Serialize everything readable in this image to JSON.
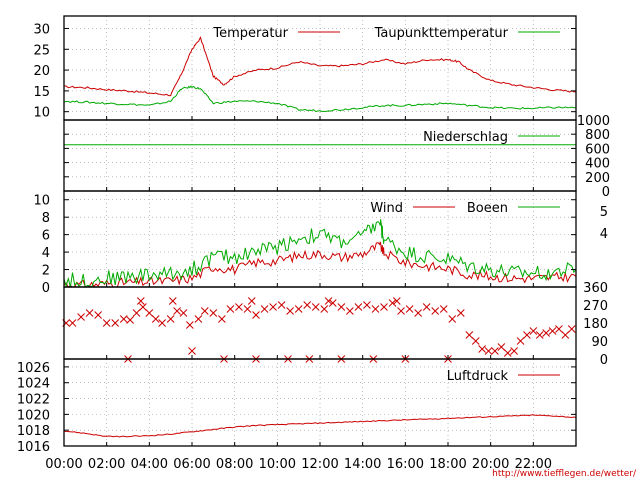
{
  "chart_data": [
    {
      "type": "line",
      "panel": "temperature",
      "ylim": [
        8,
        33
      ],
      "yticks": [
        "10",
        "15",
        "20",
        "25",
        "30"
      ],
      "legend_position": "top-right",
      "grid": true,
      "series": [
        {
          "name": "Temperatur",
          "color": "#cc0000",
          "x": [
            0,
            1,
            2,
            3,
            4,
            5,
            5.5,
            6,
            6.4,
            7,
            7.5,
            8,
            9,
            10,
            11,
            12,
            13,
            14,
            15,
            16,
            17,
            18,
            18.5,
            19,
            20,
            21,
            22,
            23,
            24
          ],
          "y": [
            16,
            15.8,
            15.3,
            15,
            14.5,
            14,
            19,
            25,
            27.7,
            18.5,
            16.5,
            18.5,
            20,
            20.5,
            22,
            21,
            21,
            21.5,
            22.5,
            21.5,
            22.5,
            22.5,
            22,
            20,
            17.5,
            16.5,
            15.8,
            15.2,
            14.8
          ]
        },
        {
          "name": "Taupunkttemperatur",
          "color": "#00aa00",
          "x": [
            0,
            1,
            2,
            3,
            4,
            5,
            5.5,
            6,
            6.4,
            7,
            8,
            9,
            10,
            11,
            12,
            13,
            14,
            15,
            16,
            17,
            18,
            19,
            20,
            21,
            22,
            23,
            24
          ],
          "y": [
            12.5,
            12.3,
            12,
            11.8,
            11.5,
            12.5,
            15.5,
            16,
            15.5,
            12,
            12.5,
            12.5,
            12,
            10.5,
            10.2,
            10.5,
            11,
            11.5,
            11.5,
            11.8,
            12,
            11.5,
            11,
            10.8,
            10.8,
            11,
            11
          ]
        }
      ]
    },
    {
      "type": "line",
      "panel": "precipitation",
      "ylim": [
        0,
        1000
      ],
      "yticks": [
        "0",
        "200",
        "400",
        "600",
        "800",
        "1000"
      ],
      "legend_position": "top-right",
      "grid": true,
      "series": [
        {
          "name": "Niederschlag",
          "color": "#00aa00",
          "x": [
            0,
            24
          ],
          "y": [
            650,
            650
          ]
        }
      ]
    },
    {
      "type": "line",
      "panel": "wind",
      "ylim": [
        0,
        11
      ],
      "yticks": [
        "0",
        "2",
        "4",
        "6",
        "8",
        "10"
      ],
      "right_ticks": [
        "4",
        "5"
      ],
      "legend_position": "top-right",
      "grid": true,
      "series": [
        {
          "name": "Wind",
          "color": "#cc0000",
          "x": [
            0,
            1,
            2,
            3,
            4,
            5,
            6,
            7,
            8,
            9,
            10,
            11,
            12,
            13,
            14,
            14.8,
            15,
            16,
            17,
            18,
            19,
            20,
            21,
            22,
            23,
            24
          ],
          "y": [
            0.3,
            0.2,
            0.4,
            0.5,
            0.6,
            0.7,
            1.0,
            2.3,
            2.0,
            2.8,
            3.0,
            3.6,
            3.8,
            3.4,
            3.8,
            4.8,
            3.9,
            2.8,
            2.4,
            2.1,
            1.4,
            1.2,
            1.0,
            1.0,
            1.1,
            1.2
          ]
        },
        {
          "name": "Boeen",
          "color": "#00aa00",
          "x": [
            0,
            1,
            2,
            3,
            4,
            5,
            6,
            7,
            8,
            9,
            10,
            11,
            12,
            13,
            14,
            14.8,
            15,
            16,
            17,
            18,
            19,
            20,
            21,
            22,
            23,
            24
          ],
          "y": [
            0.8,
            0.7,
            1.0,
            1.2,
            1.4,
            1.5,
            2.0,
            3.5,
            3.4,
            4.2,
            4.6,
            5.6,
            6.0,
            5.2,
            5.8,
            7.5,
            5.4,
            4.0,
            3.5,
            3.2,
            2.4,
            2.0,
            1.6,
            1.6,
            1.8,
            2.0
          ]
        }
      ]
    },
    {
      "type": "scatter",
      "panel": "wind-direction",
      "ylim": [
        0,
        360
      ],
      "right_ticks": [
        "0",
        "90",
        "180",
        "270",
        "360"
      ],
      "marker": "x",
      "color": "#cc0000",
      "series": [
        {
          "name": "",
          "x": [
            0.1,
            0.4,
            0.8,
            1.2,
            1.6,
            2.0,
            2.4,
            2.8,
            3.1,
            3.4,
            3.7,
            4.0,
            4.3,
            4.6,
            5.0,
            5.3,
            5.6,
            5.9,
            6.3,
            6.6,
            7.0,
            7.4,
            7.8,
            8.2,
            8.6,
            9.0,
            9.4,
            9.8,
            10.2,
            10.6,
            11.0,
            11.4,
            11.8,
            12.2,
            12.6,
            13.0,
            13.4,
            13.8,
            14.2,
            14.6,
            15.0,
            15.4,
            15.8,
            16.2,
            16.6,
            17.0,
            17.4,
            17.8,
            18.2,
            18.6,
            19.0,
            19.3,
            19.6,
            19.9,
            20.2,
            20.5,
            20.8,
            21.1,
            21.4,
            21.7,
            22.0,
            22.3,
            22.6,
            22.9,
            23.2,
            23.5,
            23.8,
            3.0,
            6.0,
            7.5,
            9.0,
            10.5,
            11.5,
            13.0,
            14.5,
            16.0,
            18.0,
            3.6,
            5.1,
            8.8,
            12.4,
            15.6
          ],
          "y": [
            180,
            180,
            210,
            230,
            220,
            180,
            180,
            200,
            195,
            230,
            260,
            230,
            200,
            180,
            200,
            240,
            230,
            170,
            200,
            240,
            230,
            200,
            250,
            260,
            250,
            220,
            250,
            260,
            270,
            240,
            250,
            270,
            260,
            250,
            280,
            260,
            240,
            260,
            270,
            250,
            260,
            280,
            240,
            250,
            230,
            260,
            240,
            250,
            200,
            230,
            120,
            90,
            50,
            40,
            40,
            60,
            30,
            40,
            90,
            120,
            140,
            120,
            130,
            140,
            150,
            120,
            150,
            0,
            40,
            0,
            0,
            0,
            0,
            0,
            0,
            0,
            0,
            290,
            290,
            290,
            290,
            290
          ]
        }
      ]
    },
    {
      "type": "line",
      "panel": "pressure",
      "ylim": [
        1016,
        1027
      ],
      "yticks": [
        "1016",
        "1018",
        "1020",
        "1022",
        "1024",
        "1026"
      ],
      "legend_position": "top-right",
      "grid": true,
      "series": [
        {
          "name": "Luftdruck",
          "color": "#cc0000",
          "x": [
            0,
            1,
            2,
            3,
            4,
            5,
            6,
            7,
            8,
            9,
            10,
            11,
            12,
            13,
            14,
            15,
            16,
            17,
            18,
            19,
            20,
            21,
            22,
            23,
            24
          ],
          "y": [
            1017.9,
            1017.6,
            1017.2,
            1017.2,
            1017.3,
            1017.5,
            1017.8,
            1018.1,
            1018.4,
            1018.6,
            1018.7,
            1018.8,
            1018.9,
            1019.0,
            1019.1,
            1019.2,
            1019.3,
            1019.4,
            1019.5,
            1019.6,
            1019.7,
            1019.8,
            1019.9,
            1019.8,
            1019.6
          ]
        }
      ]
    }
  ],
  "x_axis": {
    "xlim": [
      0,
      24
    ],
    "ticks": [
      0,
      2,
      4,
      6,
      8,
      10,
      12,
      14,
      16,
      18,
      20,
      22
    ],
    "labels": [
      "00:00",
      "02:00",
      "04:00",
      "06:00",
      "08:00",
      "10:00",
      "12:00",
      "14:00",
      "16:00",
      "18:00",
      "20:00",
      "22:00"
    ]
  },
  "credit": "http://www.tiefflegen.de/wetter/"
}
